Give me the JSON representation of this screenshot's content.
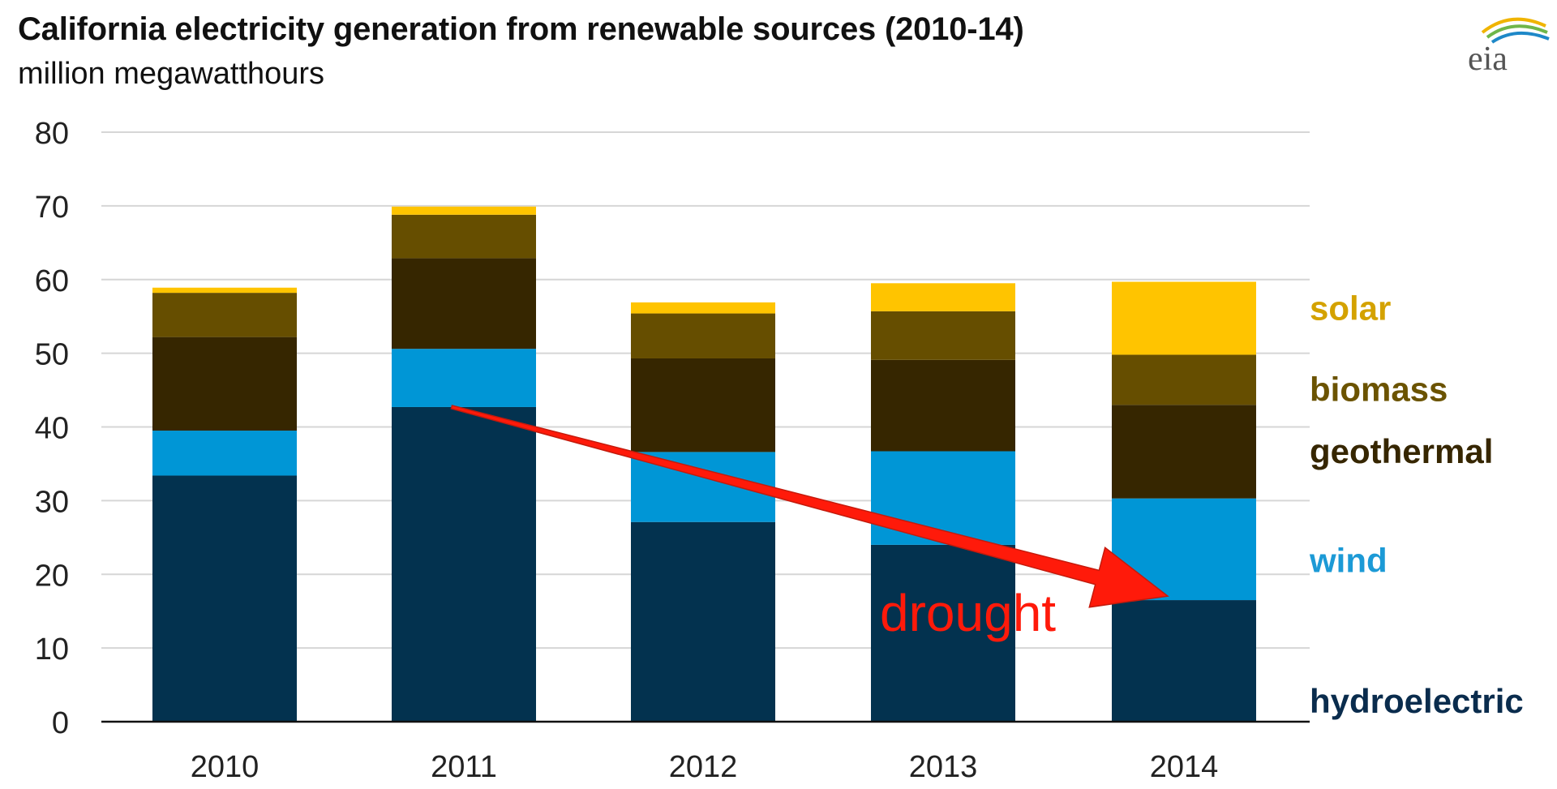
{
  "header": {
    "title": "California electricity generation from renewable sources (2010-14)",
    "subtitle": "million megawatthours",
    "logo_text": "eia"
  },
  "chart_data": {
    "type": "bar",
    "stacked": true,
    "title": "California electricity generation from renewable sources (2010-14)",
    "ylabel": "million megawatthours",
    "xlabel": "",
    "ylim": [
      0,
      80
    ],
    "yticks": [
      0,
      10,
      20,
      30,
      40,
      50,
      60,
      70,
      80
    ],
    "grid": true,
    "legend_placement": "right, inline series labels",
    "categories": [
      "2010",
      "2011",
      "2012",
      "2013",
      "2014"
    ],
    "series": [
      {
        "name": "hydroelectric",
        "color": "#03324f",
        "values": [
          33.4,
          42.7,
          27.1,
          24.0,
          16.5
        ]
      },
      {
        "name": "wind",
        "color": "#0096d6",
        "values": [
          6.1,
          7.9,
          9.5,
          12.7,
          13.8
        ]
      },
      {
        "name": "geothermal",
        "color": "#362600",
        "values": [
          12.7,
          12.3,
          12.7,
          12.4,
          12.7
        ]
      },
      {
        "name": "biomass",
        "color": "#664e00",
        "values": [
          6.0,
          5.9,
          6.1,
          6.6,
          6.8
        ]
      },
      {
        "name": "solar",
        "color": "#ffc400",
        "values": [
          0.7,
          1.1,
          1.5,
          3.8,
          9.9
        ]
      }
    ],
    "series_label_colors": {
      "solar": "#d4a200",
      "biomass": "#6b5300",
      "geothermal": "#362600",
      "wind": "#1c9ad6",
      "hydroelectric": "#0a2c4d"
    },
    "annotation": {
      "text": "drought",
      "color": "#ff1a0a",
      "arrow_from": {
        "category": "2011",
        "value": 42.7
      },
      "arrow_to": {
        "category": "2014",
        "value": 16.5
      }
    }
  }
}
